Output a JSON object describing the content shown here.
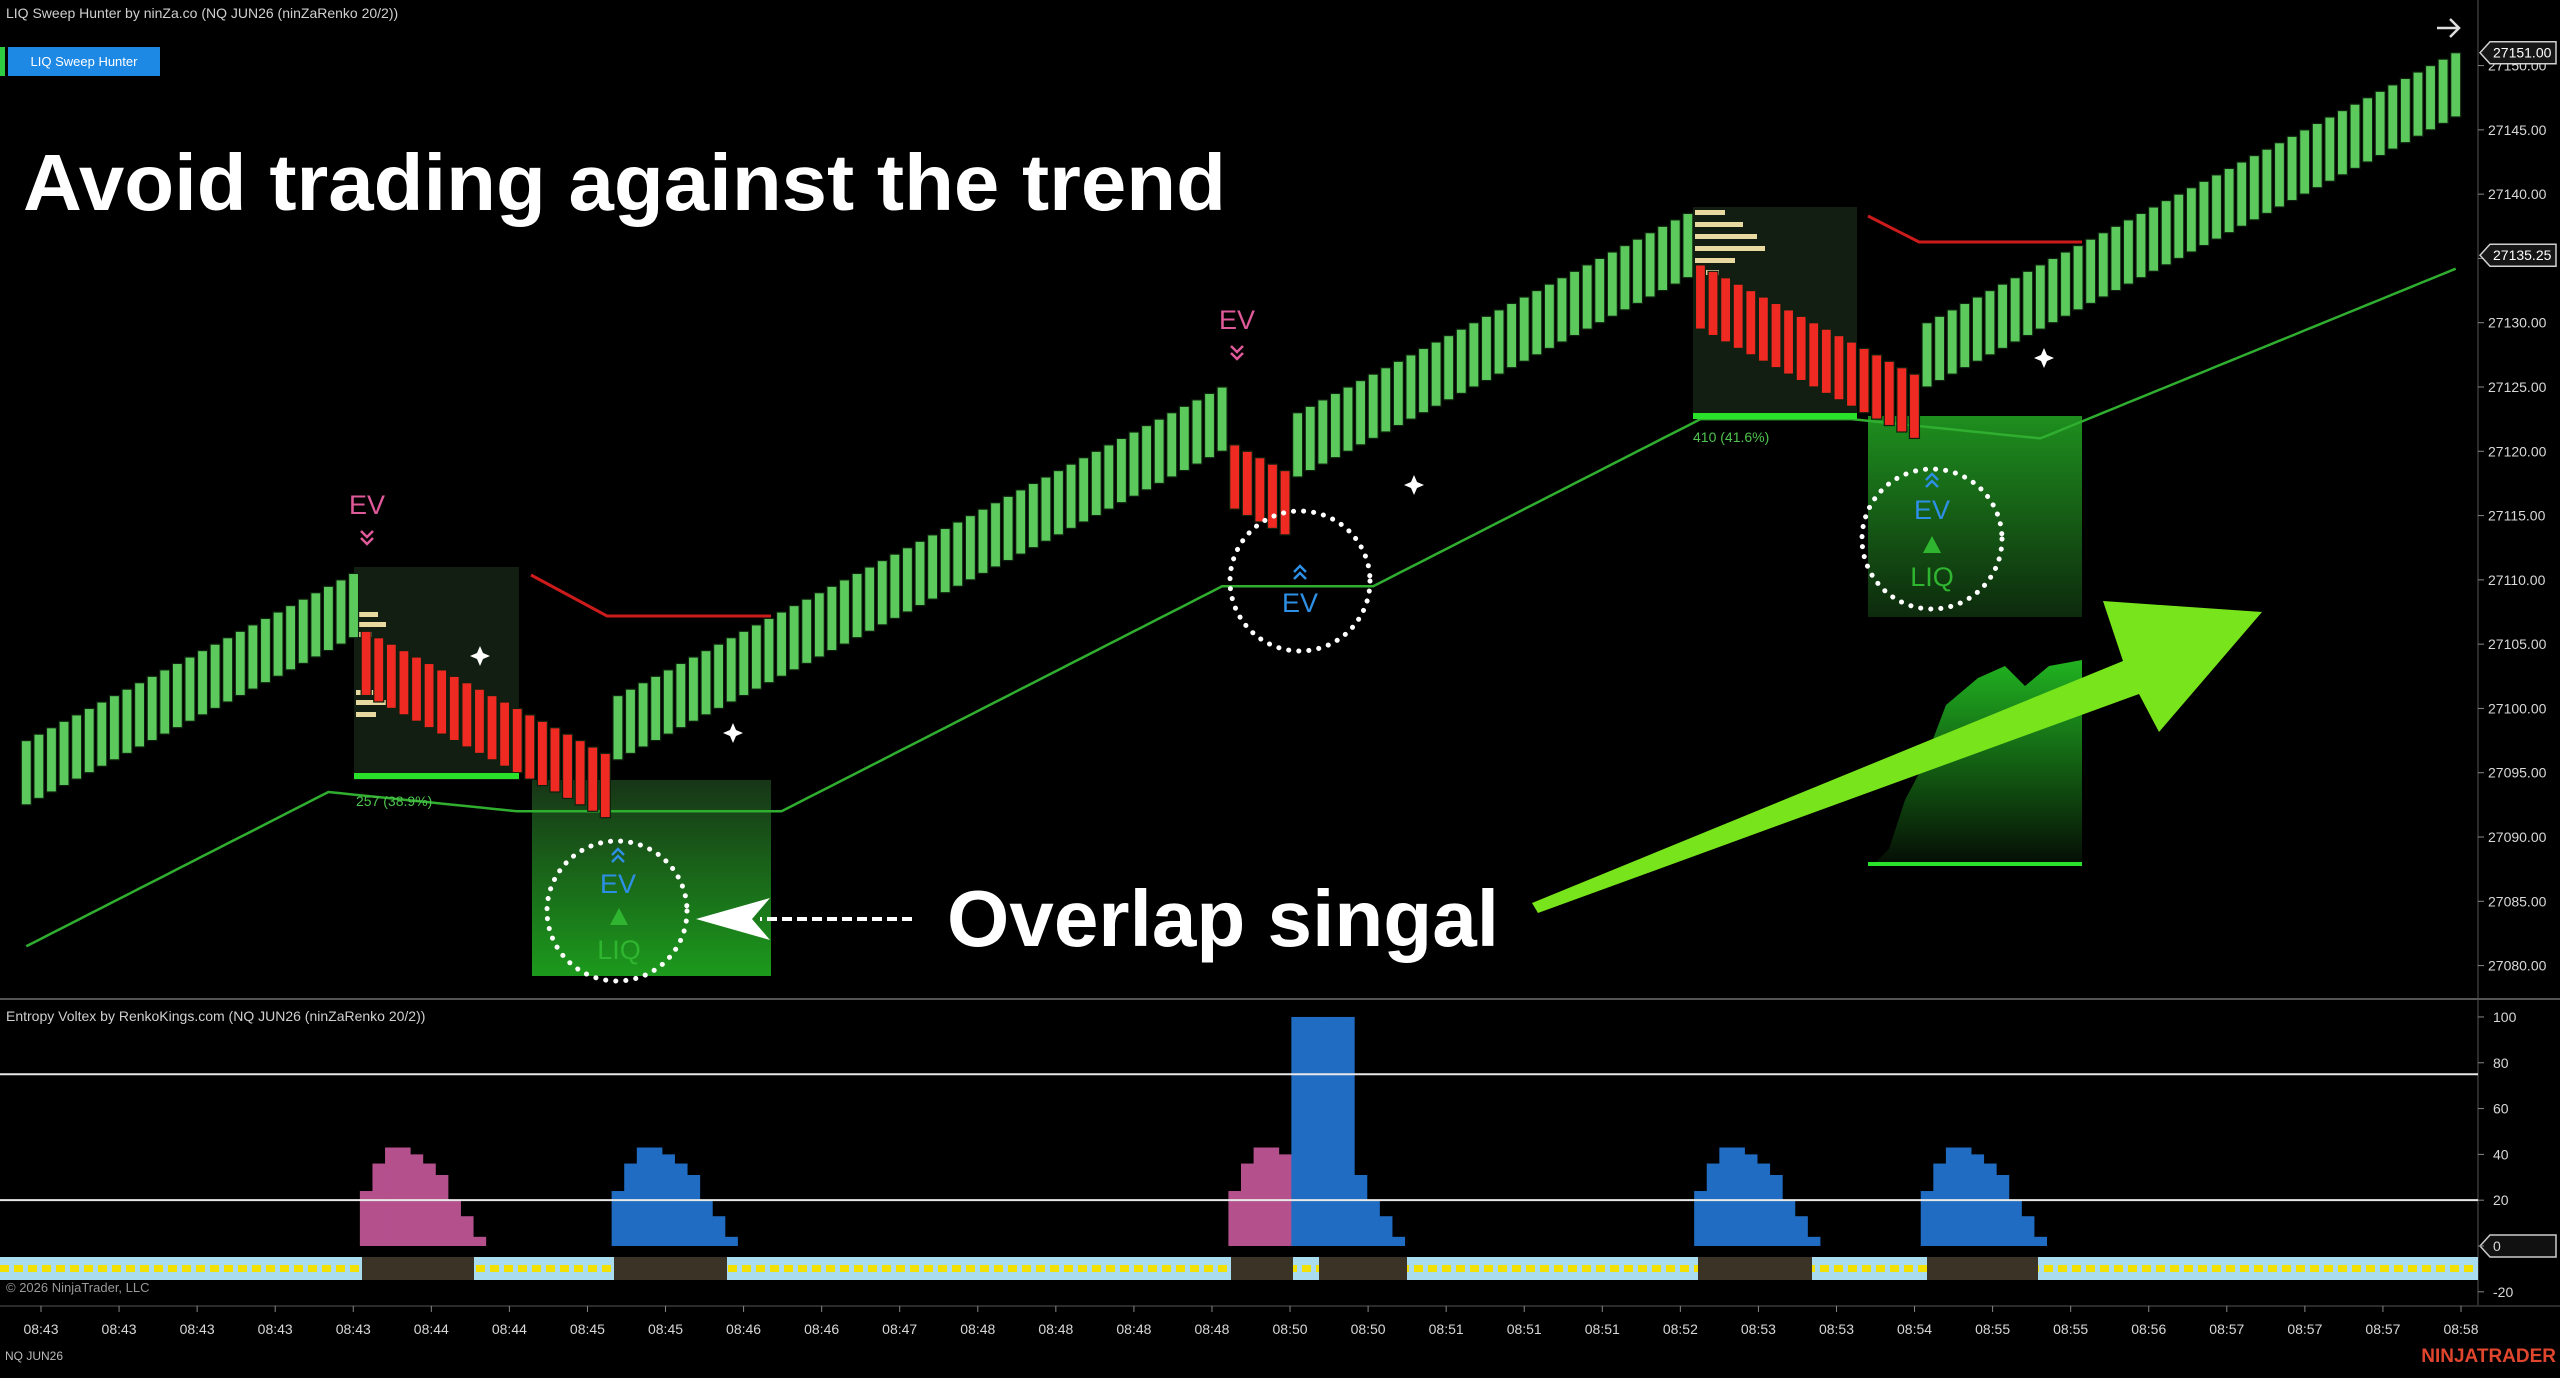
{
  "header": {
    "title": "LIQ Sweep Hunter by ninZa.co (NQ JUN26 (ninZaRenko 20/2))",
    "button": "LIQ Sweep Hunter"
  },
  "chart_data": [
    {
      "type": "candlestick",
      "open": [
        27092.5,
        27093,
        27093.5,
        27094,
        27094.5,
        27095,
        27095.5,
        27096,
        27096.5,
        27097,
        27097.5,
        27098,
        27098.5,
        27099,
        27099.5,
        27100,
        27100.5,
        27101,
        27101.5,
        27102,
        27102.5,
        27103,
        27103.5,
        27104,
        27104.5,
        27105,
        27105.5,
        27106,
        27105.5,
        27105,
        27104.5,
        27104,
        27103.5,
        27103,
        27102.5,
        27102,
        27101.5,
        27101,
        27100.5,
        27100,
        27099.5,
        27099,
        27098.5,
        27098,
        27097.5,
        27097,
        27096.5,
        27096,
        27096.5,
        27097,
        27097.5,
        27098,
        27098.5,
        27099,
        27099.5,
        27100,
        27100.5,
        27101,
        27101.5,
        27102,
        27102.5,
        27103,
        27103.5,
        27104,
        27104.5,
        27105,
        27105.5,
        27106,
        27106.5,
        27107,
        27107.5,
        27108,
        27108.5,
        27109,
        27109.5,
        27110,
        27110.5,
        27111,
        27111.5,
        27112,
        27112.5,
        27113,
        27113.5,
        27114,
        27114.5,
        27115,
        27115.5,
        27116,
        27116.5,
        27117,
        27117.5,
        27118,
        27118.5,
        27119,
        27119.5,
        27120,
        27120.5,
        27120,
        27119.5,
        27119,
        27118.5,
        27118,
        27118.5,
        27119,
        27119.5,
        27120,
        27120.5,
        27121,
        27121.5,
        27122,
        27122.5,
        27123,
        27123.5,
        27124,
        27124.5,
        27125,
        27125.5,
        27126,
        27126.5,
        27127,
        27127.5,
        27128,
        27128.5,
        27129,
        27129.5,
        27130,
        27130.5,
        27131,
        27131.5,
        27132,
        27132.5,
        27133,
        27133.5,
        27134.5,
        27134,
        27133.5,
        27133,
        27132.5,
        27132,
        27131.5,
        27131,
        27130.5,
        27130,
        27129.5,
        27129,
        27128.5,
        27128,
        27127.5,
        27127,
        27126.5,
        27126,
        27125,
        27125.5,
        27126,
        27126.5,
        27127,
        27127.5,
        27128,
        27128.5,
        27129,
        27129.5,
        27130,
        27130.5,
        27131,
        27131.5,
        27132,
        27132.5,
        27133,
        27133.5,
        27134,
        27134.5,
        27135,
        27135.5,
        27136,
        27136.5,
        27137,
        27137.5,
        27138,
        27138.5,
        27139,
        27139.5,
        27140,
        27140.5,
        27141,
        27141.5,
        27142,
        27142.5,
        27143,
        27143.5,
        27144,
        27144.5,
        27145,
        27145.5,
        27146
      ],
      "close": [
        27097.5,
        27098,
        27098.5,
        27099,
        27099.5,
        27100,
        27100.5,
        27101,
        27101.5,
        27102,
        27102.5,
        27103,
        27103.5,
        27104,
        27104.5,
        27105,
        27105.5,
        27106,
        27106.5,
        27107,
        27107.5,
        27108,
        27108.5,
        27109,
        27109.5,
        27110,
        27110.5,
        27101,
        27100.5,
        27100,
        27099.5,
        27099,
        27098.5,
        27098,
        27097.5,
        27097,
        27096.5,
        27096,
        27095.5,
        27095,
        27094.5,
        27094,
        27093.5,
        27093,
        27092.5,
        27092,
        27091.5,
        27101,
        27101.5,
        27102,
        27102.5,
        27103,
        27103.5,
        27104,
        27104.5,
        27105,
        27105.5,
        27106,
        27106.5,
        27107,
        27107.5,
        27108,
        27108.5,
        27109,
        27109.5,
        27110,
        27110.5,
        27111,
        27111.5,
        27112,
        27112.5,
        27113,
        27113.5,
        27114,
        27114.5,
        27115,
        27115.5,
        27116,
        27116.5,
        27117,
        27117.5,
        27118,
        27118.5,
        27119,
        27119.5,
        27120,
        27120.5,
        27121,
        27121.5,
        27122,
        27122.5,
        27123,
        27123.5,
        27124,
        27124.5,
        27125,
        27115.5,
        27115,
        27114.5,
        27114,
        27113.5,
        27123,
        27123.5,
        27124,
        27124.5,
        27125,
        27125.5,
        27126,
        27126.5,
        27127,
        27127.5,
        27128,
        27128.5,
        27129,
        27129.5,
        27130,
        27130.5,
        27131,
        27131.5,
        27132,
        27132.5,
        27133,
        27133.5,
        27134,
        27134.5,
        27135,
        27135.5,
        27136,
        27136.5,
        27137,
        27137.5,
        27138,
        27138.5,
        27129.5,
        27129,
        27128.5,
        27128,
        27127.5,
        27127,
        27126.5,
        27126,
        27125.5,
        27125,
        27124.5,
        27124,
        27123.5,
        27123,
        27122.5,
        27122,
        27121.5,
        27121,
        27130,
        27130.5,
        27131,
        27131.5,
        27132,
        27132.5,
        27133,
        27133.5,
        27134,
        27134.5,
        27135,
        27135.5,
        27136,
        27136.5,
        27137,
        27137.5,
        27138,
        27138.5,
        27139,
        27139.5,
        27140,
        27140.5,
        27141,
        27141.5,
        27142,
        27142.5,
        27143,
        27143.5,
        27144,
        27144.5,
        27145,
        27145.5,
        27146,
        27146.5,
        27147,
        27147.5,
        27148,
        27148.5,
        27149,
        27149.5,
        27150,
        27150.5,
        27151
      ],
      "up_color": "#5cc95c",
      "down_color": "#ee2a22",
      "trend_line": {
        "color": "#2fae2f",
        "values": [
          27081.5,
          27082,
          27082.5,
          27083,
          27083.5,
          27084,
          27084.5,
          27085,
          27085.5,
          27086,
          27086.5,
          27087,
          27087.5,
          27088,
          27088.5,
          27089,
          27089.5,
          27090,
          27090.5,
          27091,
          27091.5,
          27092,
          27092.5,
          27093,
          27093.5,
          27093.4,
          27093.3,
          27093.2,
          27093.1,
          27093,
          27092.9,
          27092.8,
          27092.7,
          27092.6,
          27092.5,
          27092.4,
          27092.3,
          27092.2,
          27092.1,
          27092,
          27092,
          27092,
          27092,
          27092,
          27092,
          27092,
          27092,
          27092,
          27092,
          27092,
          27092,
          27092,
          27092,
          27092,
          27092,
          27092,
          27092,
          27092,
          27092,
          27092,
          27092,
          27092.5,
          27093,
          27093.5,
          27094,
          27094.5,
          27095,
          27095.5,
          27096,
          27096.5,
          27097,
          27097.5,
          27098,
          27098.5,
          27099,
          27099.5,
          27100,
          27100.5,
          27101,
          27101.5,
          27102,
          27102.5,
          27103,
          27103.5,
          27104,
          27104.5,
          27105,
          27105.5,
          27106,
          27106.5,
          27107,
          27107.5,
          27108,
          27108.5,
          27109,
          27109.5,
          27109.5,
          27109.5,
          27109.5,
          27109.5,
          27109.5,
          27109.5,
          27109.5,
          27109.5,
          27109.5,
          27109.5,
          27109.5,
          27109.5,
          27110,
          27110.5,
          27111,
          27111.5,
          27112,
          27112.5,
          27113,
          27113.5,
          27114,
          27114.5,
          27115,
          27115.5,
          27116,
          27116.5,
          27117,
          27117.5,
          27118,
          27118.5,
          27119,
          27119.5,
          27120,
          27120.5,
          27121,
          27121.5,
          27122,
          27122.5,
          27122.5,
          27122.5,
          27122.5,
          27122.5,
          27122.5,
          27122.5,
          27122.5,
          27122.5,
          27122.5,
          27122.5,
          27122.5,
          27122.5,
          27122.4,
          27122.3,
          27122.2,
          27122.1,
          27122,
          27121.9,
          27121.8,
          27121.7,
          27121.6,
          27121.5,
          27121.4,
          27121.3,
          27121.2,
          27121.1,
          27121,
          27121.4,
          27121.8,
          27122.2,
          27122.6,
          27123,
          27123.4,
          27123.8,
          27124.2,
          27124.6,
          27125,
          27125.4,
          27125.8,
          27126.2,
          27126.6,
          27127,
          27127.4,
          27127.8,
          27128.2,
          27128.6,
          27129,
          27129.4,
          27129.8,
          27130.2,
          27130.6,
          27131,
          27131.4,
          27131.8,
          27132.2,
          27132.6,
          27133,
          27133.4,
          27133.8,
          27134.2
        ]
      },
      "ylim": [
        27077.4,
        27155.1
      ],
      "yticks": [
        {
          "value": 27080,
          "label": "27080.00"
        },
        {
          "value": 27085,
          "label": "27085.00"
        },
        {
          "value": 27090,
          "label": "27090.00"
        },
        {
          "value": 27095,
          "label": "27095.00"
        },
        {
          "value": 27100,
          "label": "27100.00"
        },
        {
          "value": 27105,
          "label": "27105.00"
        },
        {
          "value": 27110,
          "label": "27110.00"
        },
        {
          "value": 27115,
          "label": "27115.00"
        },
        {
          "value": 27120,
          "label": "27120.00"
        },
        {
          "value": 27125,
          "label": "27125.00"
        },
        {
          "value": 27130,
          "label": "27130.00"
        },
        {
          "value": 27135,
          "label": "27135.00"
        },
        {
          "value": 27140,
          "label": "27140.00"
        },
        {
          "value": 27145,
          "label": "27145.00"
        },
        {
          "value": 27150,
          "label": "27150.00"
        }
      ],
      "price_markers": [
        {
          "value": 27151,
          "label": "27151.00"
        },
        {
          "value": 27135.25,
          "label": "27135.25"
        }
      ]
    },
    {
      "type": "bar",
      "title": "Entropy Voltex by RenkoKings.com (NQ JUN26 (ninZaRenko 20/2))",
      "series": [
        {
          "color": "#b4508c",
          "values": [
            null,
            null,
            null,
            null,
            null,
            null,
            null,
            null,
            null,
            null,
            null,
            null,
            null,
            null,
            null,
            null,
            null,
            null,
            null,
            null,
            null,
            null,
            null,
            null,
            null,
            null,
            null,
            24,
            36,
            43,
            43,
            40,
            36,
            31,
            20,
            13,
            4,
            null,
            null,
            null,
            null,
            null,
            null,
            null,
            null,
            null,
            null,
            null,
            null,
            null,
            null,
            null,
            null,
            null,
            null,
            null,
            null,
            null,
            null,
            null,
            null,
            null,
            null,
            null,
            null,
            null,
            null,
            null,
            null,
            null,
            null,
            null,
            null,
            null,
            null,
            null,
            null,
            null,
            null,
            null,
            null,
            null,
            null,
            null,
            null,
            null,
            null,
            null,
            null,
            null,
            null,
            null,
            null,
            null,
            null,
            null,
            24,
            36,
            43,
            43,
            40,
            null,
            null,
            null,
            null,
            null,
            null,
            null,
            null,
            null,
            null,
            null,
            null,
            null,
            null,
            null,
            null,
            null,
            null,
            null,
            null,
            null,
            null,
            null,
            null,
            null,
            null,
            null,
            null,
            null,
            null,
            null,
            null,
            null,
            null,
            null,
            null,
            null,
            null,
            null,
            null,
            null,
            null,
            null,
            null,
            null,
            null,
            null,
            null,
            null,
            null,
            null,
            null,
            null,
            null,
            null,
            null,
            null,
            null,
            null,
            null,
            null,
            null,
            null,
            null,
            null,
            null,
            null,
            null,
            null,
            null,
            null,
            null,
            null,
            null,
            null,
            null,
            null,
            null,
            null,
            null,
            null,
            null,
            null,
            null,
            null,
            null,
            null,
            null,
            null,
            null,
            null,
            null,
            null
          ]
        },
        {
          "color": "#1f6cc2",
          "values": [
            null,
            null,
            null,
            null,
            null,
            null,
            null,
            null,
            null,
            null,
            null,
            null,
            null,
            null,
            null,
            null,
            null,
            null,
            null,
            null,
            null,
            null,
            null,
            null,
            null,
            null,
            null,
            null,
            null,
            null,
            null,
            null,
            null,
            null,
            null,
            null,
            null,
            null,
            null,
            null,
            null,
            null,
            null,
            null,
            null,
            null,
            null,
            24,
            36,
            43,
            43,
            40,
            36,
            31,
            20,
            13,
            4,
            null,
            null,
            null,
            null,
            null,
            null,
            null,
            null,
            null,
            null,
            null,
            null,
            null,
            null,
            null,
            null,
            null,
            null,
            null,
            null,
            null,
            null,
            null,
            null,
            null,
            null,
            null,
            null,
            null,
            null,
            null,
            null,
            null,
            null,
            null,
            null,
            null,
            null,
            null,
            null,
            null,
            null,
            null,
            null,
            100,
            100,
            100,
            100,
            100,
            31,
            20,
            13,
            4,
            null,
            null,
            null,
            null,
            null,
            null,
            null,
            null,
            null,
            null,
            null,
            null,
            null,
            null,
            null,
            null,
            null,
            null,
            null,
            null,
            null,
            null,
            null,
            24,
            36,
            43,
            43,
            40,
            36,
            31,
            20,
            13,
            4,
            null,
            null,
            null,
            null,
            null,
            null,
            null,
            null,
            24,
            36,
            43,
            43,
            40,
            36,
            31,
            20,
            13,
            4,
            null,
            null,
            null,
            null,
            null,
            null,
            null,
            null,
            null,
            null,
            null,
            null,
            null,
            null,
            null,
            null,
            null,
            null,
            null,
            null,
            null,
            null,
            null,
            null,
            null,
            null,
            null,
            null,
            null,
            null,
            null,
            null,
            null
          ]
        }
      ],
      "ylim": [
        -26.2,
        107.4
      ],
      "yticks": [
        -20,
        0,
        20,
        40,
        60,
        80,
        100
      ],
      "levels": [
        75,
        20
      ]
    }
  ],
  "time_axis": {
    "labels": [
      "08:43",
      "08:43",
      "08:43",
      "08:43",
      "08:43",
      "08:44",
      "08:44",
      "08:45",
      "08:45",
      "08:46",
      "08:46",
      "08:47",
      "08:48",
      "08:48",
      "08:48",
      "08:48",
      "08:50",
      "08:50",
      "08:51",
      "08:51",
      "08:51",
      "08:52",
      "08:53",
      "08:53",
      "08:54",
      "08:55",
      "08:55",
      "08:56",
      "08:57",
      "08:57",
      "08:57",
      "08:58"
    ]
  },
  "annotations": {
    "headline": "Avoid trading against the trend",
    "callout": "Overlap singal",
    "ev_labels": [
      "EV",
      "EV",
      "EV",
      "EV",
      "EV"
    ],
    "liq_labels": [
      "LIQ",
      "LIQ"
    ],
    "zone_labels": [
      "257 (38.9%)",
      "410 (41.6%)"
    ]
  },
  "footer": {
    "copyright": "© 2026 NinjaTrader, LLC",
    "instrument": "NQ JUN26",
    "brand": "NINJATRADER"
  }
}
